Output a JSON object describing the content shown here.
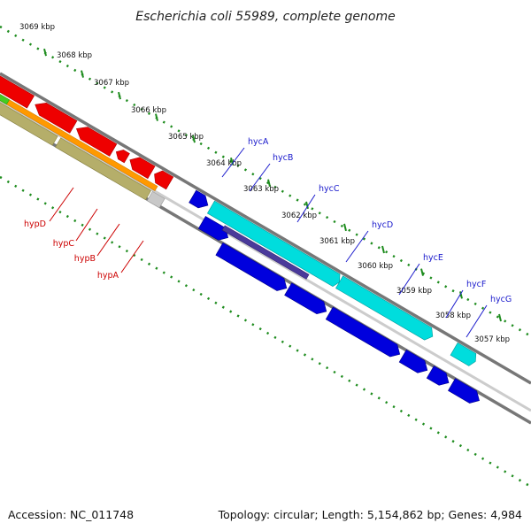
{
  "title": "Escherichia coli 55989, complete genome",
  "footer": {
    "accession": "Accession: NC_011748",
    "summary": "Topology: circular; Length: 5,154,862 bp; Genes: 4,984"
  },
  "colors": {
    "background": "#ffffff",
    "backbone": "#808080",
    "ruler": "#1e8c1e",
    "label_red": "#cc0000",
    "label_blue": "#1a1acc"
  },
  "ticks": [
    "3069 kbp",
    "3068 kbp",
    "3067 kbp",
    "3066 kbp",
    "3065 kbp",
    "3064 kbp",
    "3063 kbp",
    "3062 kbp",
    "3061 kbp",
    "3060 kbp",
    "3059 kbp",
    "3058 kbp",
    "3057 kbp"
  ],
  "genes": [
    {
      "name": "hypD",
      "strand": "left",
      "color": "#ee0000"
    },
    {
      "name": "hypC",
      "strand": "left",
      "color": "#ee0000"
    },
    {
      "name": "hypB",
      "strand": "left",
      "color": "#ee0000"
    },
    {
      "name": "hypA",
      "strand": "left",
      "color": "#ee0000"
    },
    {
      "name": "hycA",
      "strand": "right",
      "color": "#0000dd"
    },
    {
      "name": "hycB",
      "strand": "right",
      "color": "#0000dd"
    },
    {
      "name": "hycC",
      "strand": "right",
      "color": "#0000dd"
    },
    {
      "name": "hycD",
      "strand": "right",
      "color": "#0000dd"
    },
    {
      "name": "hycE",
      "strand": "right",
      "color": "#0000dd"
    },
    {
      "name": "hycF",
      "strand": "right",
      "color": "#0000dd"
    },
    {
      "name": "hycG",
      "strand": "right",
      "color": "#0000dd"
    }
  ]
}
